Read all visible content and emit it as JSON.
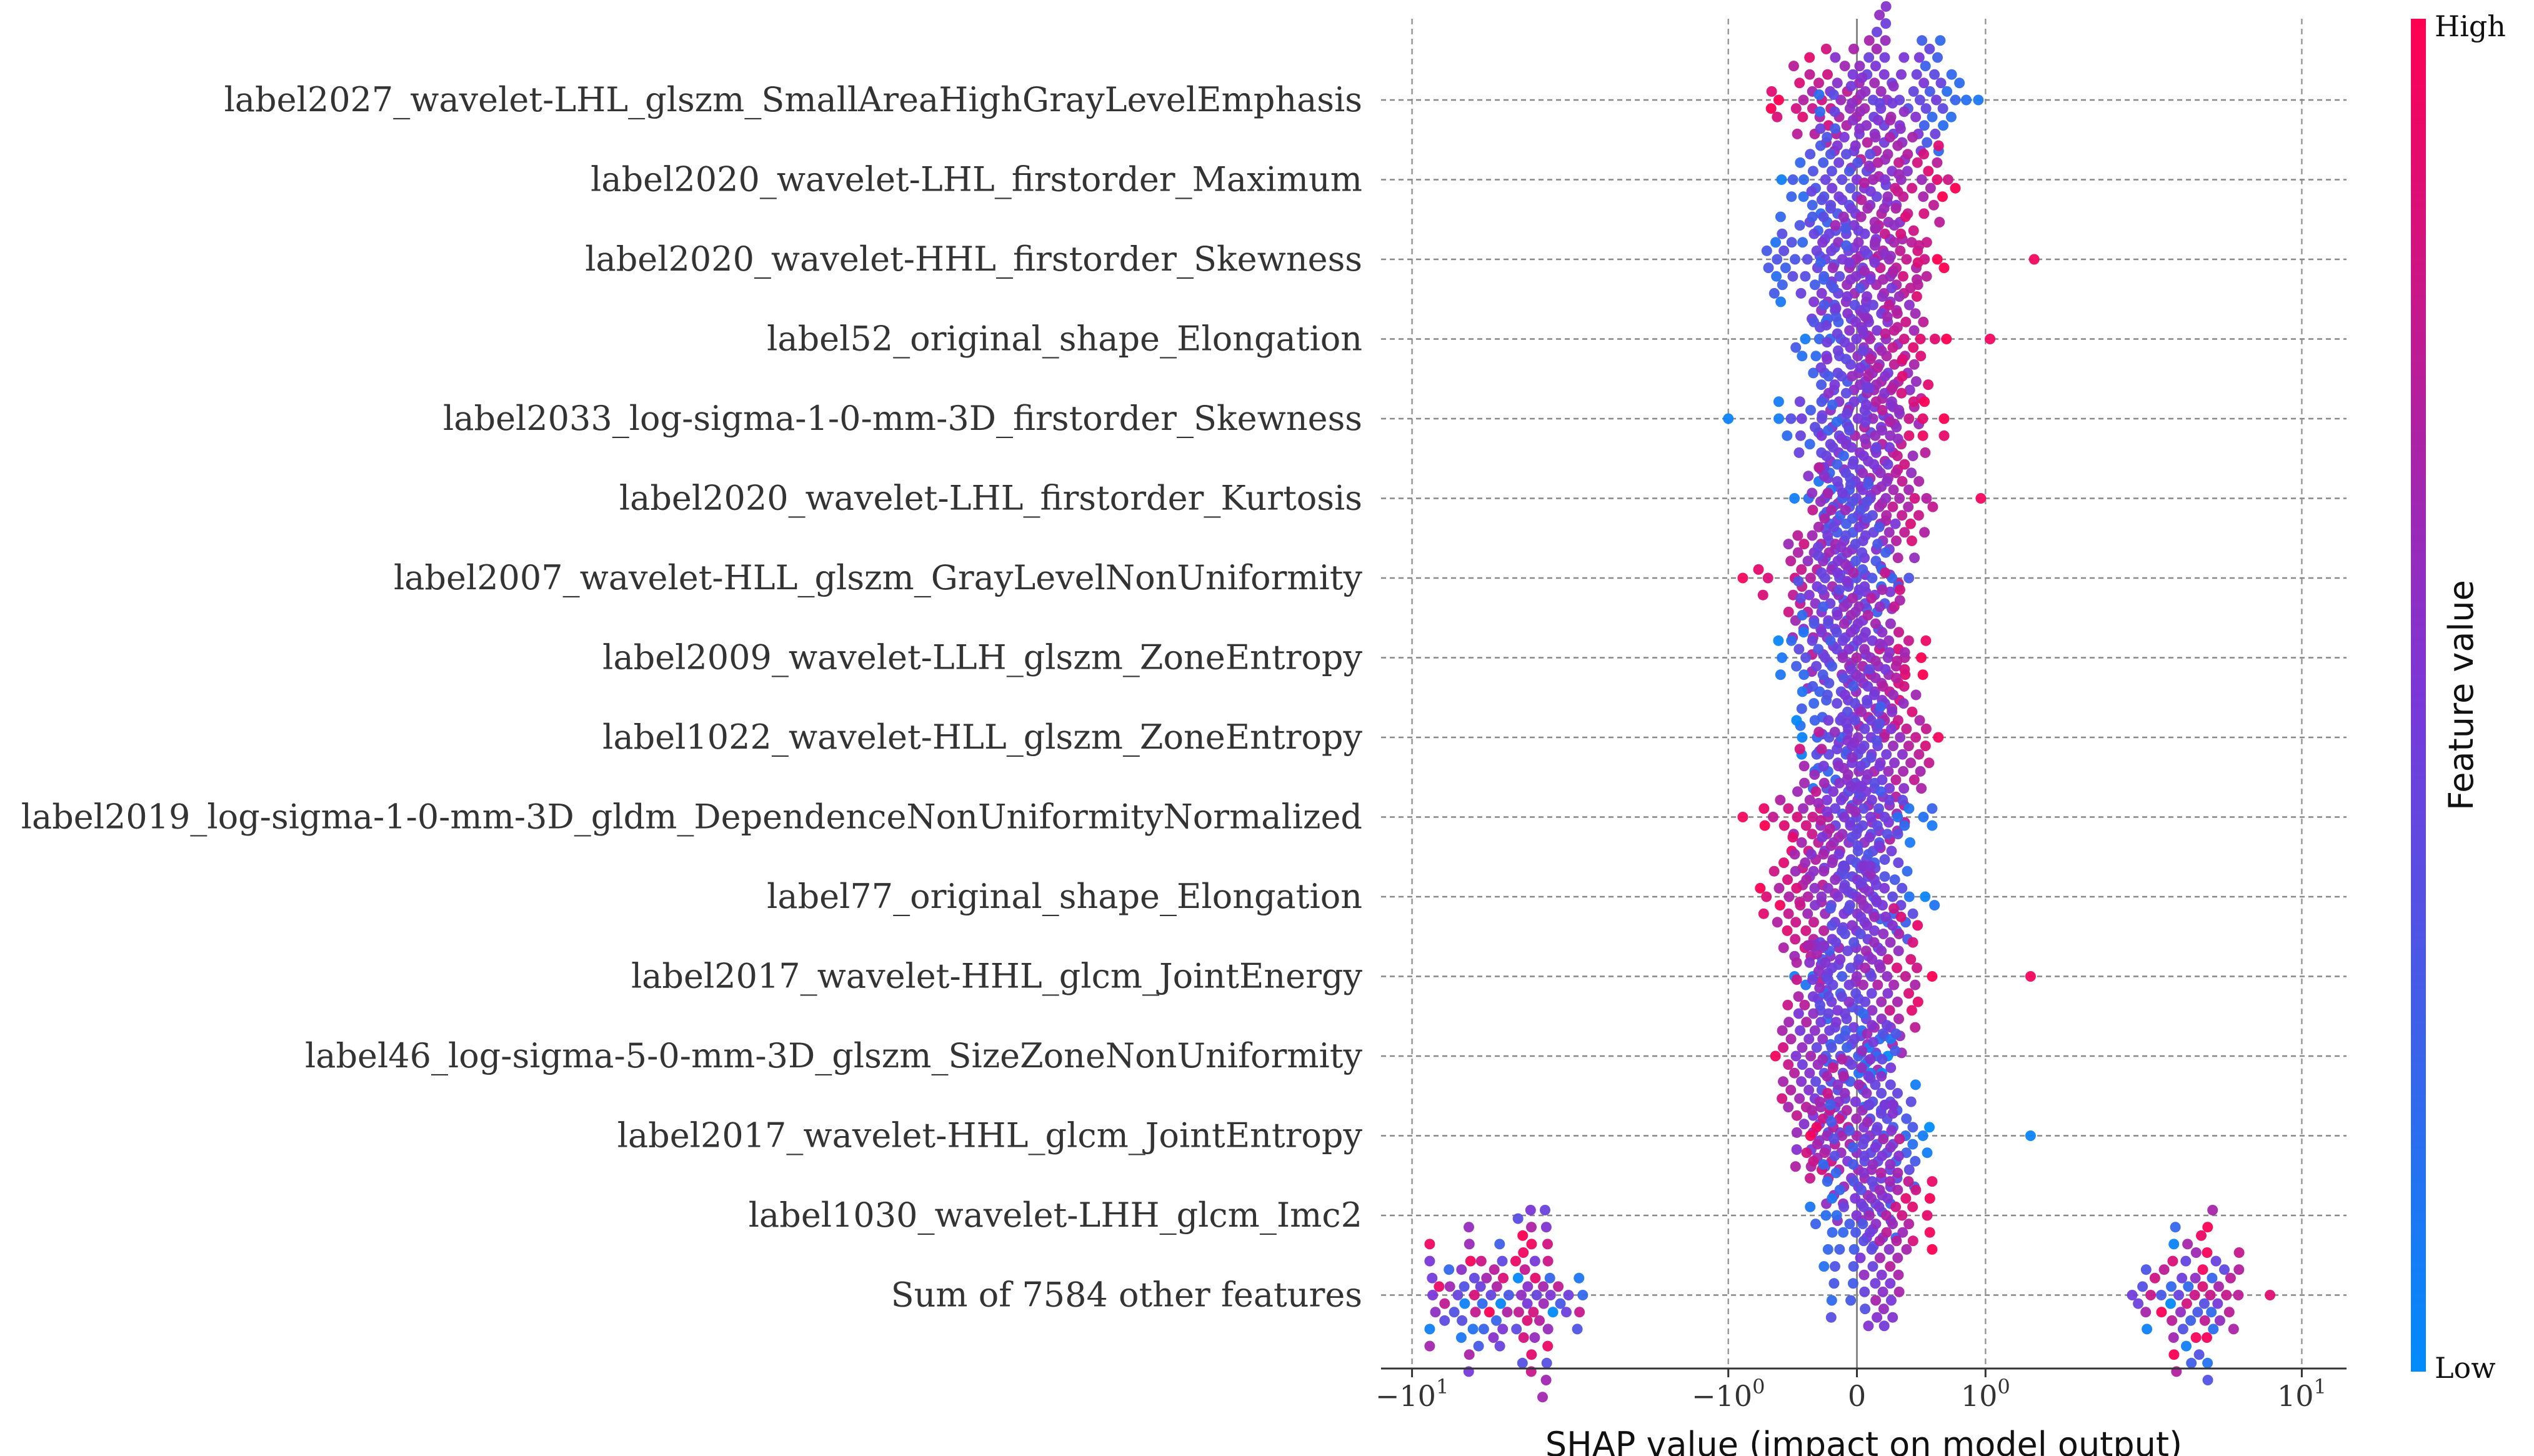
{
  "chart_data": {
    "type": "scatter",
    "subtype": "shap-beeswarm",
    "xlabel": "SHAP value (impact on model output)",
    "xscale": "symlog",
    "xlim": [
      -12,
      13
    ],
    "xticks": [
      {
        "value": -10,
        "base": "−10",
        "exp": "1"
      },
      {
        "value": -1,
        "base": "−10",
        "exp": "0"
      },
      {
        "value": 0,
        "base": "0",
        "exp": ""
      },
      {
        "value": 1,
        "base": "10",
        "exp": "0"
      },
      {
        "value": 10,
        "base": "10",
        "exp": "1"
      }
    ],
    "grid": "dashed",
    "colorbar": {
      "title": "Feature value",
      "high_label": "High",
      "low_label": "Low",
      "high_color": "#ff0051",
      "low_color": "#008bfb",
      "mid_color": "#7a37d8"
    },
    "features": [
      {
        "name": "label2027_wavelet-LHL_glszm_SmallAreaHighGrayLevelEmphasis",
        "min": -0.65,
        "max": 0.95,
        "outliers": [],
        "trend": -1
      },
      {
        "name": "label2020_wavelet-LHL_firstorder_Maximum",
        "min": -0.55,
        "max": 0.7,
        "outliers": [],
        "trend": 1
      },
      {
        "name": "label2020_wavelet-HHL_firstorder_Skewness",
        "min": -0.75,
        "max": 0.6,
        "outliers": [
          1.6
        ],
        "trend": 1
      },
      {
        "name": "label52_original_shape_Elongation",
        "min": -0.5,
        "max": 0.65,
        "outliers": [
          1.05
        ],
        "trend": 1
      },
      {
        "name": "label2033_log-sigma-1-0-mm-3D_firstorder_Skewness",
        "min": -0.65,
        "max": 0.6,
        "outliers": [
          -1.0
        ],
        "trend": 1
      },
      {
        "name": "label2020_wavelet-LHL_firstorder_Kurtosis",
        "min": -0.4,
        "max": 0.6,
        "outliers": [
          0.95
        ],
        "trend": 1
      },
      {
        "name": "label2007_wavelet-HLL_glszm_GrayLevelNonUniformity",
        "min": -0.7,
        "max": 0.45,
        "outliers": [
          -0.85
        ],
        "trend": -1
      },
      {
        "name": "label2009_wavelet-LLH_glszm_ZoneEntropy",
        "min": -0.55,
        "max": 0.5,
        "outliers": [],
        "trend": 1
      },
      {
        "name": "label1022_wavelet-HLL_glszm_ZoneEntropy",
        "min": -0.45,
        "max": 0.6,
        "outliers": [],
        "trend": 1
      },
      {
        "name": "label2019_log-sigma-1-0-mm-3D_gldm_DependenceNonUniformityNormalized",
        "min": -0.65,
        "max": 0.5,
        "outliers": [
          -0.85
        ],
        "trend": -1
      },
      {
        "name": "label77_original_shape_Elongation",
        "min": -0.7,
        "max": 0.55,
        "outliers": [],
        "trend": -1
      },
      {
        "name": "label2017_wavelet-HHL_glcm_JointEnergy",
        "min": -0.4,
        "max": 0.5,
        "outliers": [
          1.55
        ],
        "trend": 1
      },
      {
        "name": "label46_log-sigma-5-0-mm-3D_glszm_SizeZoneNonUniformity",
        "min": -0.7,
        "max": 0.2,
        "outliers": [],
        "trend": -1
      },
      {
        "name": "label2017_wavelet-HHL_glcm_JointEntropy",
        "min": -0.4,
        "max": 0.5,
        "outliers": [
          1.55
        ],
        "trend": -1
      },
      {
        "name": "label1030_wavelet-LHH_glcm_Imc2",
        "min": -0.3,
        "max": 0.5,
        "outliers": [],
        "trend": 1
      },
      {
        "name": "Sum of 7584 other features",
        "min": -9.0,
        "max": 10.0,
        "outliers": [],
        "trend": 0,
        "bimodal": {
          "neg_center": -5.5,
          "pos_center": 5.0
        }
      }
    ]
  }
}
